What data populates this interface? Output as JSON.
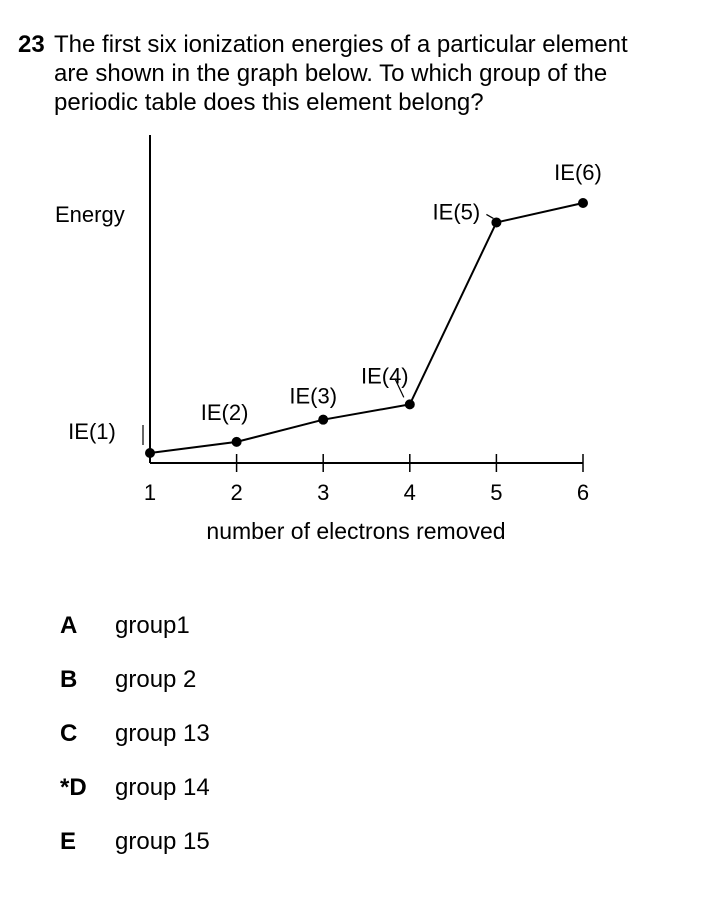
{
  "question": {
    "number": "23",
    "line1": "The first six ionization energies of a particular element",
    "line2": "are shown in the graph below. To which group of the",
    "line3": "periodic table does this element belong?"
  },
  "chart_data": {
    "type": "line",
    "title": "",
    "xlabel": "number of electrons removed",
    "ylabel": "Energy",
    "x": [
      1,
      2,
      3,
      4,
      5,
      6
    ],
    "xtick_labels": [
      "1",
      "2",
      "3",
      "4",
      "5",
      "6"
    ],
    "point_labels": [
      "IE(1)",
      "IE(2)",
      "IE(3)",
      "IE(4)",
      "IE(5)",
      "IE(6)"
    ],
    "values": [
      0.0,
      0.4,
      1.2,
      1.75,
      8.3,
      9.0
    ],
    "y_units": "relative (no numeric scale shown)",
    "ylim": [
      0,
      10
    ],
    "xlim": [
      1,
      6
    ],
    "grid": false,
    "legend": "none",
    "line_color": "#000000"
  },
  "options": [
    {
      "letter": "A",
      "text": "group1"
    },
    {
      "letter": "B",
      "text": "group 2"
    },
    {
      "letter": "C",
      "text": "group 13"
    },
    {
      "letter": "*D",
      "text": "group 14"
    },
    {
      "letter": "E",
      "text": "group 15"
    }
  ]
}
